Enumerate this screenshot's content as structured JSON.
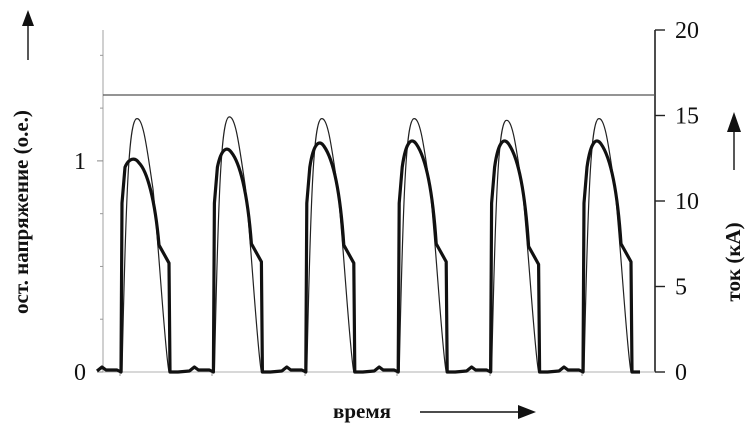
{
  "chart_data": {
    "type": "line",
    "xlabel": "время",
    "ylabel_left": "ост. напряжение (о.е.)",
    "ylabel_right": "ток (кА)",
    "left_ticks": [
      "0",
      "1"
    ],
    "right_ticks": [
      "0",
      "5",
      "10",
      "15",
      "20"
    ],
    "left_ylim": [
      0,
      1.62
    ],
    "right_ylim": [
      0,
      20
    ],
    "reference_line_left": 1,
    "grid": false,
    "pulse_count": 6,
    "series": [
      {
        "axis": "left",
        "stroke": "thick",
        "pulse_peaks": [
          1.0,
          1.05,
          1.08,
          1.09,
          1.09,
          1.09
        ],
        "pulse_tail": [
          0.97,
          0.98,
          0.97,
          0.98,
          0.96,
          0.98
        ]
      },
      {
        "axis": "right",
        "stroke": "thin",
        "pulse_peaks": [
          14.8,
          14.9,
          14.8,
          14.8,
          14.7,
          14.8
        ]
      }
    ],
    "colors": {
      "lines": "#111111",
      "reference": "#555555",
      "background": "#ffffff"
    }
  }
}
